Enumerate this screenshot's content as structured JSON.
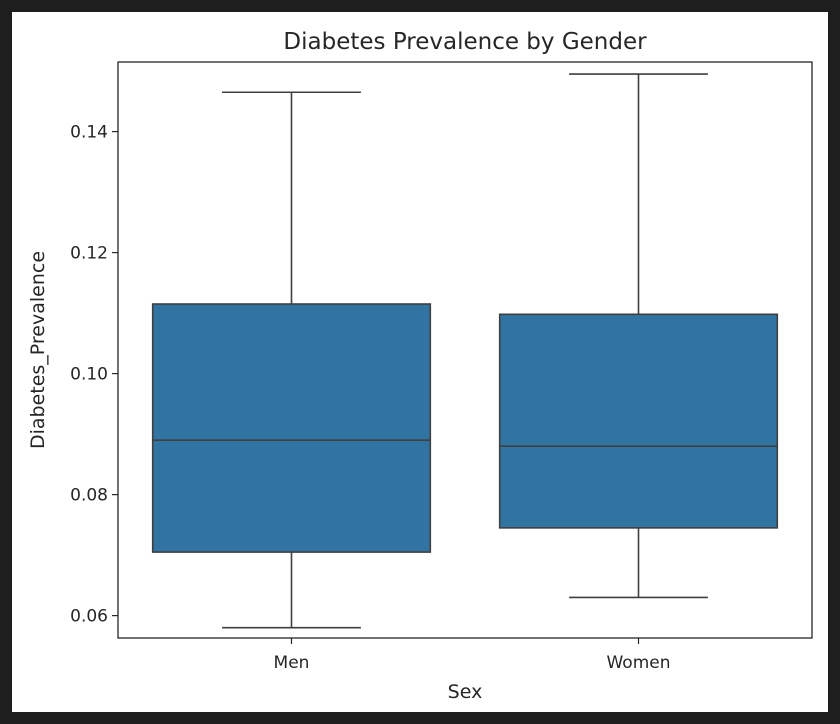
{
  "chart_data": {
    "type": "box",
    "title": "Diabetes Prevalence by Gender",
    "xlabel": "Sex",
    "ylabel": "Diabetes_Prevalence",
    "categories": [
      "Men",
      "Women"
    ],
    "boxes": [
      {
        "category": "Men",
        "whisker_low": 0.058,
        "q1": 0.0705,
        "median": 0.089,
        "q3": 0.1115,
        "whisker_high": 0.1465
      },
      {
        "category": "Women",
        "whisker_low": 0.063,
        "q1": 0.0745,
        "median": 0.088,
        "q3": 0.1098,
        "whisker_high": 0.1495
      }
    ],
    "yticks": [
      "0.06",
      "0.08",
      "0.10",
      "0.12",
      "0.14"
    ],
    "ylim": [
      0.0563,
      0.1515
    ],
    "grid": false,
    "legend": "none",
    "colors": {
      "box_fill": "#3274a1",
      "box_edge": "#3f3f3f",
      "axes": "#262626"
    }
  }
}
